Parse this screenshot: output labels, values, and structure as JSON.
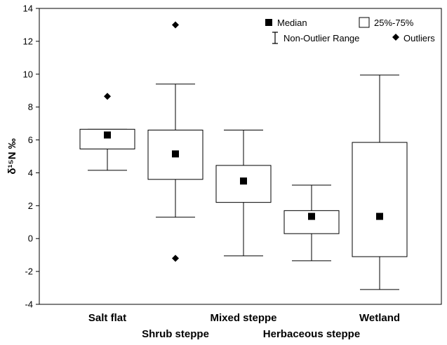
{
  "chart_data": {
    "type": "boxplot",
    "title": "",
    "ylabel": "δ¹⁵N ‰",
    "xlabel": "",
    "ylim": [
      -4,
      14
    ],
    "yticks": [
      -4,
      -2,
      0,
      2,
      4,
      6,
      8,
      10,
      12,
      14
    ],
    "grid": false,
    "legend_position": "top-right",
    "categories": [
      "Salt flat",
      "Shrub steppe",
      "Mixed steppe",
      "Herbaceous steppe",
      "Wetland"
    ],
    "boxes": [
      {
        "category": "Salt flat",
        "median": 6.3,
        "q1": 5.45,
        "q3": 6.65,
        "whisker_low": 4.15,
        "whisker_high": 6.65,
        "outliers": [
          8.65
        ],
        "outlier_style": "Outliers"
      },
      {
        "category": "Shrub steppe",
        "median": 5.15,
        "q1": 3.6,
        "q3": 6.6,
        "whisker_low": 1.3,
        "whisker_high": 9.4,
        "outliers": [
          13.0,
          -1.2
        ],
        "outlier_style": "Outliers"
      },
      {
        "category": "Mixed steppe",
        "median": 3.5,
        "q1": 2.2,
        "q3": 4.45,
        "whisker_low": -1.05,
        "whisker_high": 6.6,
        "outliers": []
      },
      {
        "category": "Herbaceous steppe",
        "median": 1.35,
        "q1": 0.3,
        "q3": 1.7,
        "whisker_low": -1.35,
        "whisker_high": 3.25,
        "outliers": []
      },
      {
        "category": "Wetland",
        "median": 1.35,
        "q1": -1.1,
        "q3": 5.85,
        "whisker_low": -3.1,
        "whisker_high": 9.95,
        "outliers": []
      }
    ],
    "legend": {
      "median": "Median",
      "box": "25%-75%",
      "whisker": "Non-Outlier Range",
      "outliers": "Outliers"
    }
  }
}
